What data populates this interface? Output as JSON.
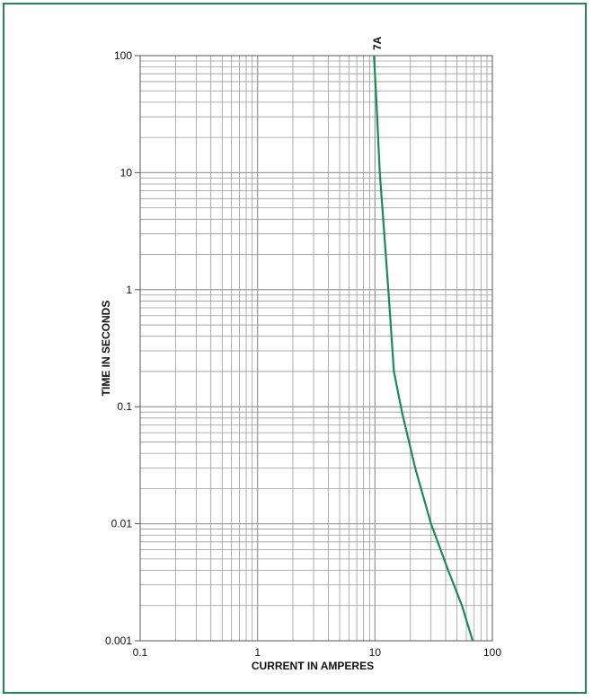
{
  "chart_data": {
    "type": "line",
    "x_scale": "log",
    "y_scale": "log",
    "xlim": [
      0.1,
      100
    ],
    "ylim": [
      0.001,
      100
    ],
    "xlabel": "CURRENT IN AMPERES",
    "ylabel": "TIME IN SECONDS",
    "x_ticks": [
      "0.1",
      "1",
      "10",
      "100"
    ],
    "y_ticks": [
      "100",
      "10",
      "1",
      "0.1",
      "0.01",
      "0.001"
    ],
    "grid": true,
    "colors": {
      "curve": "#1a8a5a",
      "frame": "#1a8a5a",
      "grid": "#9a9a9a"
    },
    "series": [
      {
        "name": "7A",
        "x": [
          9.8,
          10.3,
          11,
          12,
          13,
          14.5,
          17,
          22,
          30,
          42,
          55,
          68
        ],
        "y": [
          100,
          40,
          10,
          3,
          1,
          0.2,
          0.09,
          0.03,
          0.01,
          0.004,
          0.002,
          0.001
        ]
      }
    ]
  }
}
